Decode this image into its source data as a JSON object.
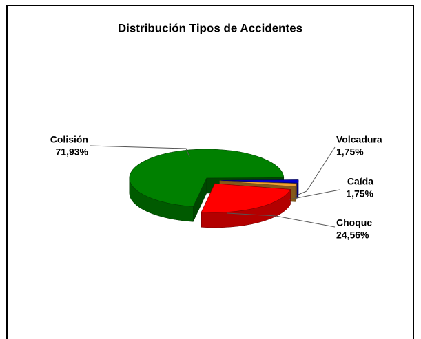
{
  "chart_data": {
    "type": "pie",
    "title": "Distribución Tipos de Accidentes",
    "categories": [
      "Colisión",
      "Volcadura",
      "Caída",
      "Choque"
    ],
    "values": [
      71.93,
      1.75,
      1.75,
      24.56
    ],
    "value_labels": [
      "71,93%",
      "1,75%",
      "1,75%",
      "24,56%"
    ],
    "colors": [
      "#008000",
      "#0000c8",
      "#f0a030",
      "#ff0000"
    ]
  }
}
